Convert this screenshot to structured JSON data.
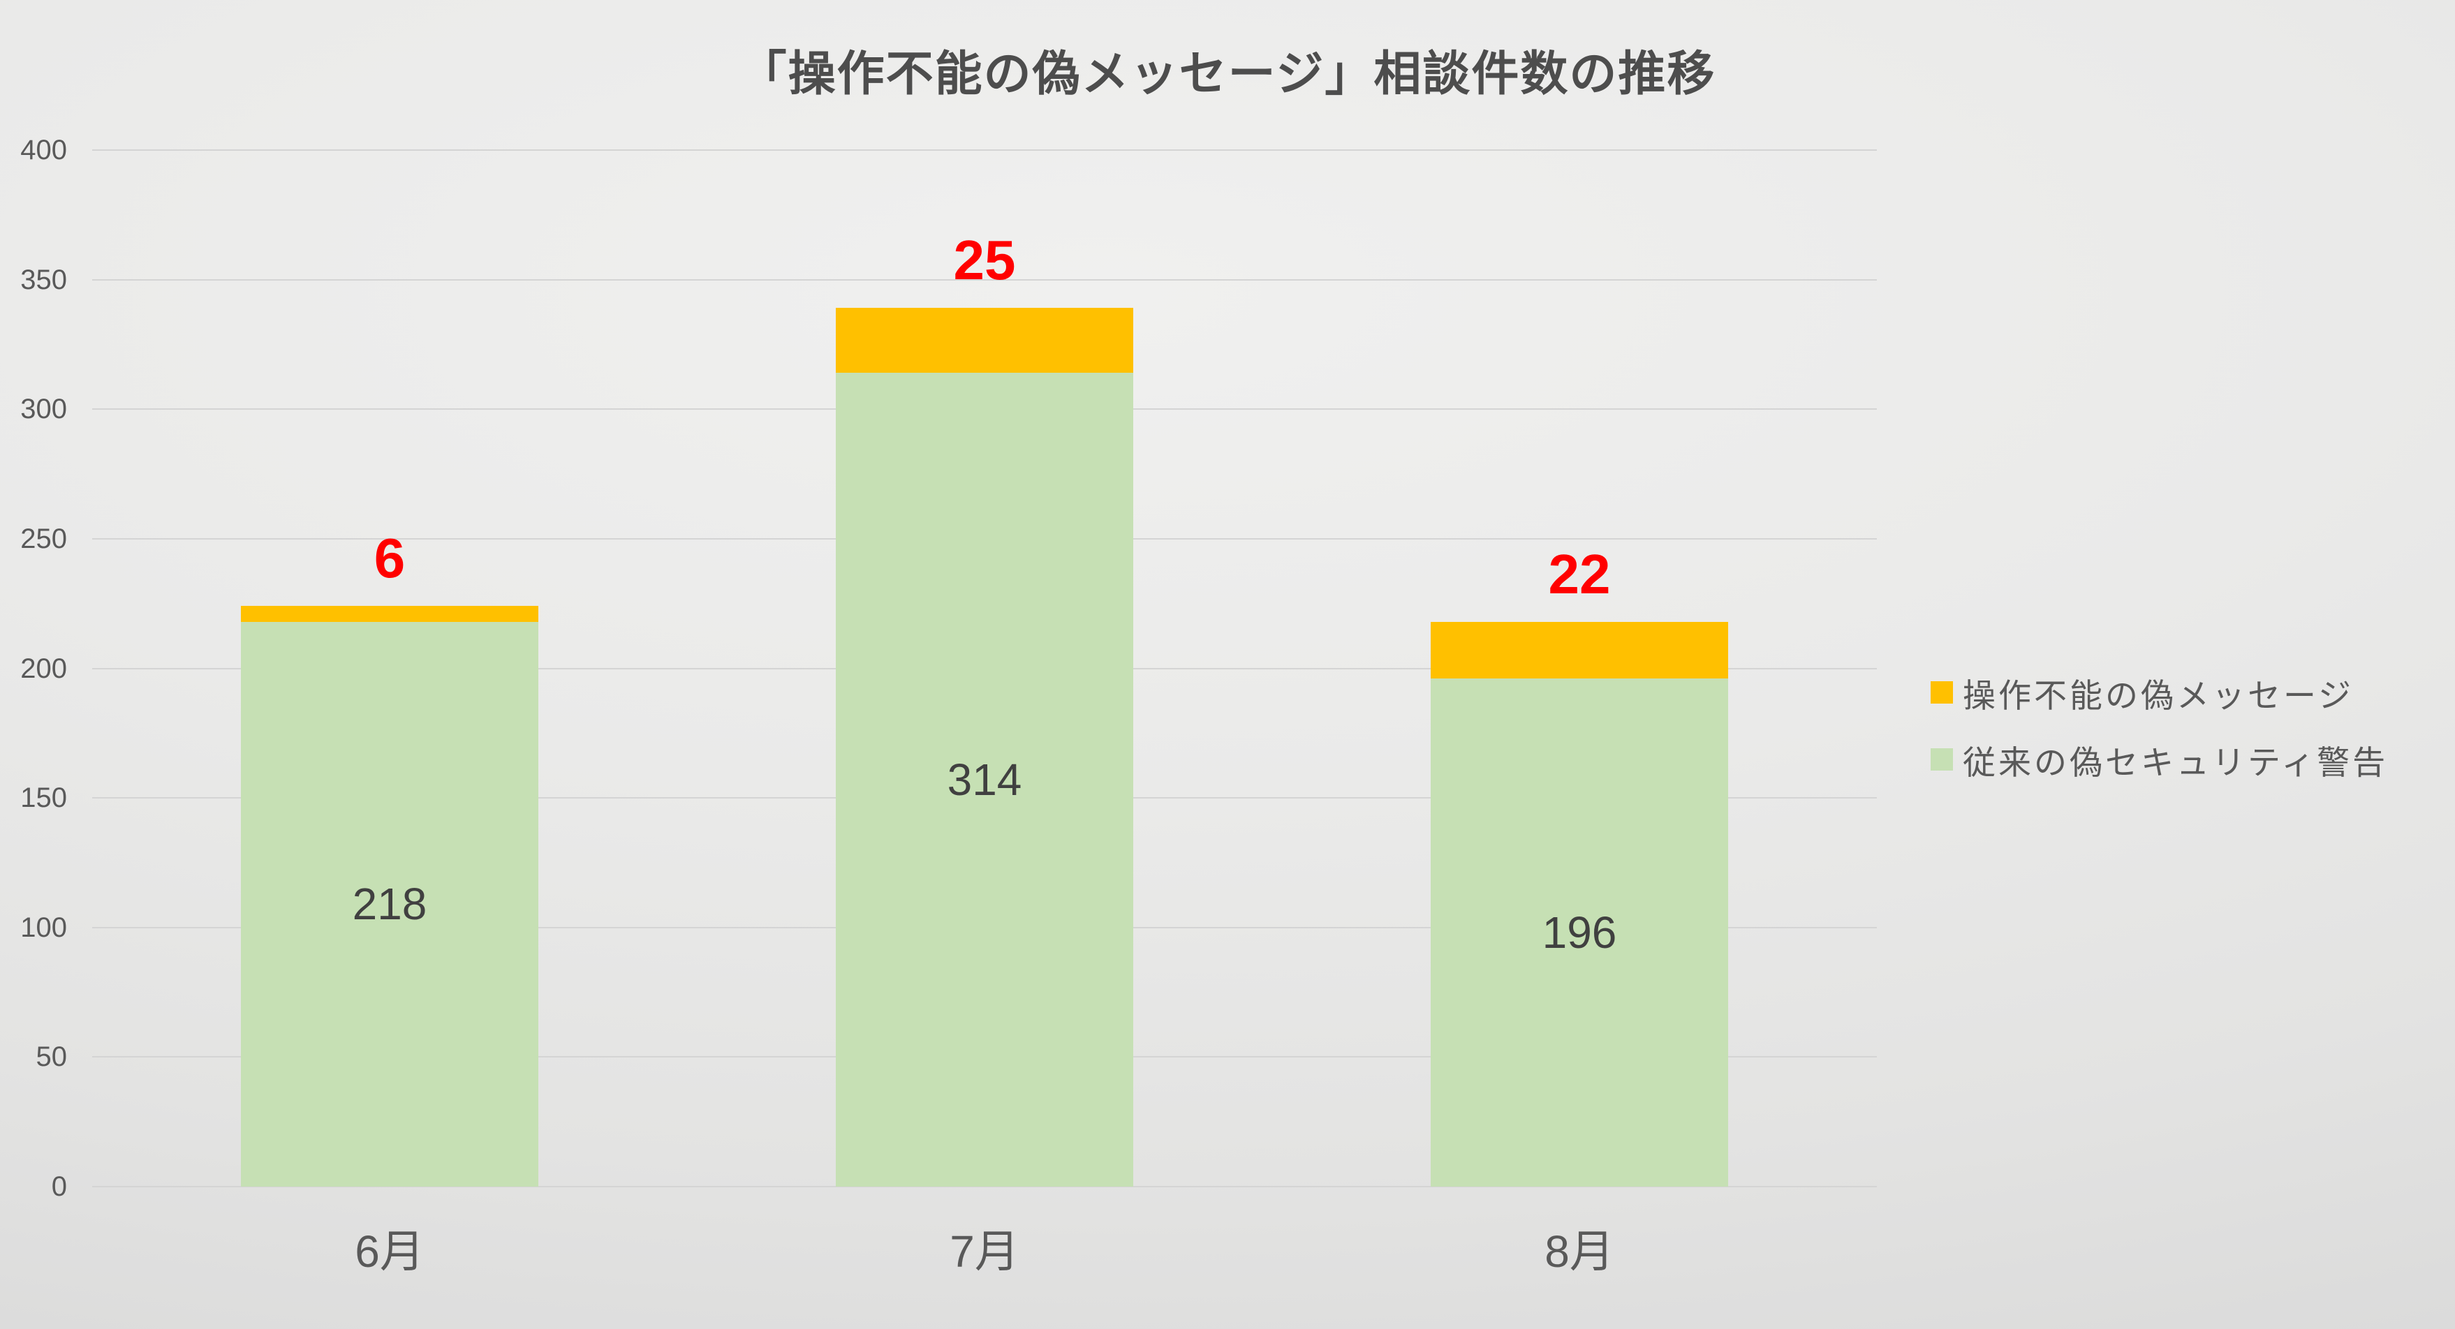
{
  "title": "「操作不能の偽メッセージ」相談件数の推移",
  "colors": {
    "background": "#e9e9e8",
    "gridline": "#d4d4d4",
    "axis_text": "#595959",
    "title_text": "#4d4d4d",
    "series_orange": "#FFC000",
    "series_green": "#C6E0B4",
    "emphasis_label": "#FF0000",
    "inside_label": "#404040"
  },
  "chart_data": {
    "type": "bar",
    "stacked": true,
    "title": "「操作不能の偽メッセージ」相談件数の推移",
    "categories": [
      "6月",
      "7月",
      "8月"
    ],
    "series": [
      {
        "name": "従来の偽セキュリティ警告",
        "color": "#C6E0B4",
        "values": [
          218,
          314,
          196
        ],
        "data_label_position": "inside-center",
        "data_label_color": "#404040"
      },
      {
        "name": "操作不能の偽メッセージ",
        "color": "#FFC000",
        "values": [
          6,
          25,
          22
        ],
        "data_label_position": "outside-top",
        "data_label_color": "#FF0000"
      }
    ],
    "totals": [
      224,
      339,
      218
    ],
    "ylabel": "",
    "xlabel": "",
    "ylim": [
      0,
      400
    ],
    "ytick_step": 50,
    "yticks": [
      0,
      50,
      100,
      150,
      200,
      250,
      300,
      350,
      400
    ],
    "grid": true,
    "legend_position": "right",
    "legend_order": [
      "操作不能の偽メッセージ",
      "従来の偽セキュリティ警告"
    ]
  }
}
